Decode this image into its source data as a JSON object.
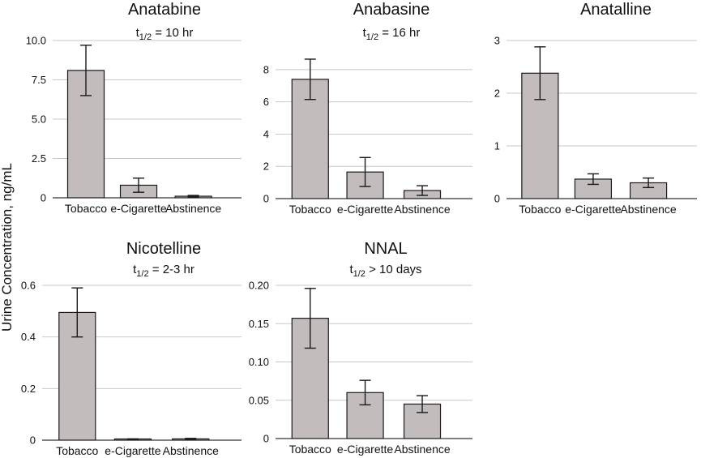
{
  "figure": {
    "ylabel": "Urine Concentration, ng/mL"
  },
  "chart_data": [
    {
      "type": "bar",
      "title": "Anatabine",
      "halflife": {
        "prefix": "t",
        "sub": "1/2",
        "text": " = 10 hr"
      },
      "categories": [
        "Tobacco",
        "e-Cigarette",
        "Abstinence"
      ],
      "values": [
        8.1,
        0.8,
        0.1
      ],
      "errors": [
        1.6,
        0.45,
        0.05
      ],
      "ylim": [
        0,
        10
      ],
      "yticks": [
        0,
        2.5,
        5,
        7.5,
        10
      ],
      "ytick_labels": [
        "0",
        "2.5",
        "5.0",
        "7.5",
        "10.0"
      ],
      "xlabel": "",
      "ylabel": "Urine Concentration, ng/mL"
    },
    {
      "type": "bar",
      "title": "Anabasine",
      "halflife": {
        "prefix": "t",
        "sub": "1/2",
        "text": " = 16 hr"
      },
      "categories": [
        "Tobacco",
        "e-Cigarette",
        "Abstinence"
      ],
      "values": [
        7.4,
        1.65,
        0.5
      ],
      "errors": [
        1.25,
        0.9,
        0.3
      ],
      "ylim": [
        0,
        8.8
      ],
      "yticks": [
        0,
        2,
        4,
        6,
        8
      ],
      "ytick_labels": [
        "0",
        "2",
        "4",
        "6",
        "8"
      ],
      "xlabel": "",
      "ylabel": "Urine Concentration, ng/mL"
    },
    {
      "type": "bar",
      "title": "Anatalline",
      "halflife": null,
      "categories": [
        "Tobacco",
        "e-Cigarette",
        "Abstinence"
      ],
      "values": [
        2.38,
        0.37,
        0.3
      ],
      "errors": [
        0.5,
        0.1,
        0.09
      ],
      "ylim": [
        0,
        3
      ],
      "yticks": [
        0,
        1,
        2,
        3
      ],
      "ytick_labels": [
        "0",
        "1",
        "2",
        "3"
      ],
      "xlabel": "",
      "ylabel": "Urine Concentration, ng/mL"
    },
    {
      "type": "bar",
      "title": "Nicotelline",
      "halflife": {
        "prefix": "t",
        "sub": "1/2",
        "text": " = 2-3 hr"
      },
      "categories": [
        "Tobacco",
        "e-Cigarette",
        "Abstinence"
      ],
      "values": [
        0.495,
        0.003,
        0.005
      ],
      "errors": [
        0.095,
        0.002,
        0.002
      ],
      "ylim": [
        0,
        0.6
      ],
      "yticks": [
        0,
        0.2,
        0.4,
        0.6
      ],
      "ytick_labels": [
        "0",
        "0.2",
        "0.4",
        "0.6"
      ],
      "xlabel": "",
      "ylabel": "Urine Concentration, ng/mL"
    },
    {
      "type": "bar",
      "title": "NNAL",
      "halflife": {
        "prefix": "t",
        "sub": "1/2",
        "text": " > 10 days"
      },
      "categories": [
        "Tobacco",
        "e-Cigarette",
        "Abstinence"
      ],
      "values": [
        0.157,
        0.06,
        0.045
      ],
      "errors": [
        0.039,
        0.016,
        0.011
      ],
      "ylim": [
        0,
        0.2
      ],
      "yticks": [
        0,
        0.05,
        0.1,
        0.15,
        0.2
      ],
      "ytick_labels": [
        "0",
        "0.05",
        "0.10",
        "0.15",
        "0.20"
      ],
      "xlabel": "",
      "ylabel": "Urine Concentration, ng/mL"
    }
  ]
}
